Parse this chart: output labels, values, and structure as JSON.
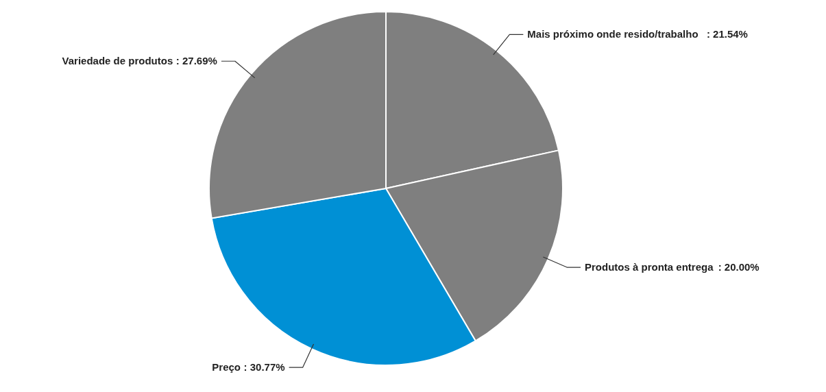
{
  "chart_data": {
    "type": "pie",
    "categories": [
      "Mais próximo onde resido/trabalho",
      "Produtos à pronta entrega",
      "Preço",
      "Variedade de produtos"
    ],
    "values": [
      21.54,
      20.0,
      30.77,
      27.69
    ],
    "colors": [
      "#7f7f7f",
      "#7f7f7f",
      "#0090d5",
      "#7f7f7f"
    ],
    "value_labels": [
      ": 21.54%",
      ": 20.00%",
      ": 30.77%",
      ": 27.69%"
    ]
  }
}
